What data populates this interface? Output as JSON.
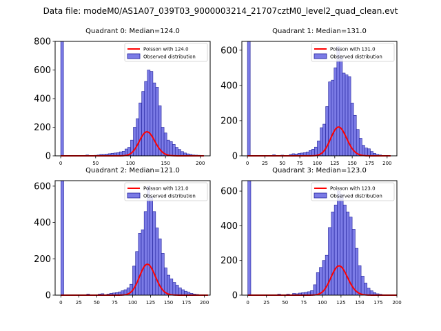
{
  "figure_title": "Data file: modeM0/AS1A07_039T03_9000003214_21707cztM0_level2_quad_clean.evt",
  "colors": {
    "bar_fill": "#7b7be6",
    "bar_edge": "#1f1f99",
    "poisson_line": "#ff0000",
    "axis": "#000000",
    "background": "#ffffff"
  },
  "chart_data": [
    {
      "type": "bar",
      "title": "Quadrant 0: Median=124.0",
      "median": 124,
      "xlim": [
        -8,
        214
      ],
      "ylim": [
        0,
        800
      ],
      "xticks": [
        0,
        50,
        100,
        150,
        200
      ],
      "yticks": [
        0,
        200,
        400,
        600,
        800
      ],
      "legend": [
        "Poisson with 124.0",
        "Observed distribution"
      ],
      "legend_position": "top-right",
      "bin_width": 4,
      "bins": [
        [
          0,
          800
        ],
        [
          36,
          6
        ],
        [
          48,
          4
        ],
        [
          52,
          6
        ],
        [
          56,
          10
        ],
        [
          60,
          10
        ],
        [
          64,
          12
        ],
        [
          68,
          15
        ],
        [
          72,
          18
        ],
        [
          76,
          20
        ],
        [
          80,
          22
        ],
        [
          84,
          28
        ],
        [
          88,
          32
        ],
        [
          92,
          48
        ],
        [
          96,
          60
        ],
        [
          100,
          110
        ],
        [
          104,
          200
        ],
        [
          108,
          260
        ],
        [
          112,
          370
        ],
        [
          116,
          450
        ],
        [
          120,
          520
        ],
        [
          124,
          600
        ],
        [
          128,
          590
        ],
        [
          132,
          510
        ],
        [
          136,
          480
        ],
        [
          140,
          350
        ],
        [
          144,
          200
        ],
        [
          148,
          160
        ],
        [
          152,
          110
        ],
        [
          156,
          100
        ],
        [
          160,
          80
        ],
        [
          164,
          60
        ],
        [
          168,
          45
        ],
        [
          172,
          30
        ],
        [
          176,
          20
        ],
        [
          180,
          14
        ],
        [
          184,
          10
        ],
        [
          188,
          6
        ],
        [
          192,
          5
        ],
        [
          196,
          4
        ]
      ],
      "poisson_mean": 124,
      "poisson_scale": 4.69
    },
    {
      "type": "bar",
      "title": "Quadrant 1: Median=131.0",
      "median": 131,
      "xlim": [
        -8,
        214
      ],
      "ylim": [
        0,
        650
      ],
      "xticks": [
        0,
        25,
        50,
        75,
        100,
        125,
        150,
        175,
        200
      ],
      "yticks": [
        0,
        200,
        400,
        600
      ],
      "legend": [
        "Poisson with 131.0",
        "Observed distribution"
      ],
      "legend_position": "top-right",
      "bin_width": 4,
      "bins": [
        [
          0,
          650
        ],
        [
          36,
          6
        ],
        [
          48,
          4
        ],
        [
          60,
          8
        ],
        [
          64,
          12
        ],
        [
          68,
          10
        ],
        [
          72,
          14
        ],
        [
          76,
          16
        ],
        [
          80,
          18
        ],
        [
          84,
          22
        ],
        [
          88,
          30
        ],
        [
          92,
          38
        ],
        [
          96,
          50
        ],
        [
          100,
          85
        ],
        [
          104,
          160
        ],
        [
          108,
          180
        ],
        [
          112,
          280
        ],
        [
          116,
          420
        ],
        [
          120,
          430
        ],
        [
          124,
          500
        ],
        [
          128,
          620
        ],
        [
          132,
          560
        ],
        [
          136,
          470
        ],
        [
          140,
          460
        ],
        [
          144,
          450
        ],
        [
          148,
          300
        ],
        [
          152,
          230
        ],
        [
          156,
          150
        ],
        [
          160,
          100
        ],
        [
          164,
          60
        ],
        [
          168,
          45
        ],
        [
          172,
          40
        ],
        [
          176,
          25
        ],
        [
          180,
          14
        ],
        [
          184,
          8
        ],
        [
          188,
          5
        ]
      ],
      "poisson_mean": 131,
      "poisson_scale": 4.69
    },
    {
      "type": "bar",
      "title": "Quadrant 2: Median=121.0",
      "median": 121,
      "xlim": [
        -8,
        208
      ],
      "ylim": [
        0,
        630
      ],
      "xticks": [
        0,
        25,
        50,
        75,
        100,
        125,
        150,
        175,
        200
      ],
      "yticks": [
        0,
        200,
        400,
        600
      ],
      "legend": [
        "Poisson with 121.0",
        "Observed distribution"
      ],
      "legend_position": "top-right",
      "bin_width": 4,
      "bins": [
        [
          0,
          630
        ],
        [
          36,
          6
        ],
        [
          52,
          6
        ],
        [
          56,
          8
        ],
        [
          64,
          6
        ],
        [
          68,
          10
        ],
        [
          72,
          12
        ],
        [
          76,
          14
        ],
        [
          80,
          18
        ],
        [
          84,
          24
        ],
        [
          88,
          30
        ],
        [
          92,
          40
        ],
        [
          96,
          60
        ],
        [
          100,
          160
        ],
        [
          104,
          240
        ],
        [
          108,
          340
        ],
        [
          112,
          360
        ],
        [
          116,
          460
        ],
        [
          120,
          600
        ],
        [
          124,
          540
        ],
        [
          128,
          460
        ],
        [
          132,
          370
        ],
        [
          136,
          310
        ],
        [
          140,
          230
        ],
        [
          144,
          150
        ],
        [
          148,
          110
        ],
        [
          152,
          90
        ],
        [
          156,
          70
        ],
        [
          160,
          55
        ],
        [
          164,
          40
        ],
        [
          168,
          30
        ],
        [
          172,
          22
        ],
        [
          176,
          16
        ],
        [
          180,
          10
        ],
        [
          184,
          6
        ],
        [
          188,
          4
        ]
      ],
      "poisson_mean": 121,
      "poisson_scale": 4.69
    },
    {
      "type": "bar",
      "title": "Quadrant 3: Median=123.0",
      "median": 123,
      "xlim": [
        -8,
        200
      ],
      "ylim": [
        0,
        660
      ],
      "xticks": [
        0,
        25,
        50,
        75,
        100,
        125,
        150,
        175,
        200
      ],
      "yticks": [
        0,
        200,
        400,
        600
      ],
      "legend": [
        "Poisson with 123.0",
        "Observed distribution"
      ],
      "legend_position": "top-right",
      "bin_width": 4,
      "bins": [
        [
          0,
          660
        ],
        [
          40,
          6
        ],
        [
          52,
          6
        ],
        [
          60,
          10
        ],
        [
          64,
          8
        ],
        [
          68,
          12
        ],
        [
          72,
          14
        ],
        [
          76,
          16
        ],
        [
          80,
          20
        ],
        [
          84,
          26
        ],
        [
          88,
          60
        ],
        [
          92,
          130
        ],
        [
          96,
          160
        ],
        [
          100,
          200
        ],
        [
          104,
          230
        ],
        [
          108,
          390
        ],
        [
          112,
          480
        ],
        [
          116,
          520
        ],
        [
          120,
          600
        ],
        [
          124,
          580
        ],
        [
          128,
          520
        ],
        [
          132,
          480
        ],
        [
          136,
          450
        ],
        [
          140,
          380
        ],
        [
          144,
          270
        ],
        [
          148,
          170
        ],
        [
          152,
          110
        ],
        [
          156,
          70
        ],
        [
          160,
          40
        ],
        [
          164,
          25
        ],
        [
          168,
          14
        ],
        [
          172,
          8
        ],
        [
          176,
          5
        ]
      ],
      "poisson_mean": 123,
      "poisson_scale": 4.69
    }
  ]
}
